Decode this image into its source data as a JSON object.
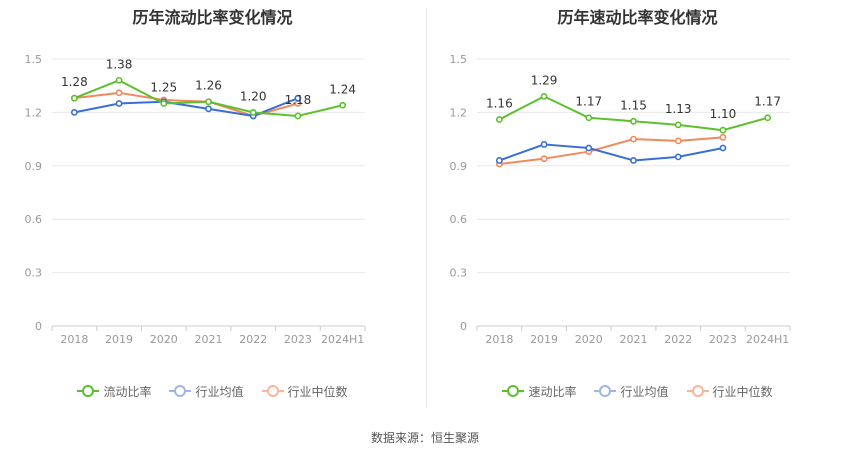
{
  "source": "数据来源：恒生聚源",
  "colors": {
    "main": "#5cc02e",
    "avg": "#3a6fd6",
    "median": "#f08a5d",
    "grid": "#e8e8e8",
    "axis": "#999999"
  },
  "chart_data": [
    {
      "type": "line",
      "title": "历年流动比率变化情况",
      "categories": [
        "2018",
        "2019",
        "2020",
        "2021",
        "2022",
        "2023",
        "2024H1"
      ],
      "ylim": [
        0,
        1.5
      ],
      "yticks": [
        "0",
        "0.3",
        "0.6",
        "0.9",
        "1.2",
        "1.5"
      ],
      "grid": true,
      "legend_position": "bottom",
      "series": [
        {
          "name": "流动比率",
          "key": "main",
          "values": [
            1.28,
            1.38,
            1.25,
            1.26,
            1.2,
            1.18,
            1.24
          ],
          "labels": [
            "1.28",
            "1.38",
            "1.25",
            "1.26",
            "1.20",
            "1.18",
            "1.24"
          ]
        },
        {
          "name": "行业均值",
          "key": "avg",
          "values": [
            1.2,
            1.25,
            1.26,
            1.22,
            1.18,
            1.28,
            null
          ]
        },
        {
          "name": "行业中位数",
          "key": "median",
          "values": [
            1.28,
            1.31,
            1.27,
            1.26,
            1.18,
            1.25,
            null
          ]
        }
      ]
    },
    {
      "type": "line",
      "title": "历年速动比率变化情况",
      "categories": [
        "2018",
        "2019",
        "2020",
        "2021",
        "2022",
        "2023",
        "2024H1"
      ],
      "ylim": [
        0,
        1.5
      ],
      "yticks": [
        "0",
        "0.3",
        "0.6",
        "0.9",
        "1.2",
        "1.5"
      ],
      "grid": true,
      "legend_position": "bottom",
      "series": [
        {
          "name": "速动比率",
          "key": "main",
          "values": [
            1.16,
            1.29,
            1.17,
            1.15,
            1.13,
            1.1,
            1.17
          ],
          "labels": [
            "1.16",
            "1.29",
            "1.17",
            "1.15",
            "1.13",
            "1.10",
            "1.17"
          ]
        },
        {
          "name": "行业均值",
          "key": "avg",
          "values": [
            0.93,
            1.02,
            1.0,
            0.93,
            0.95,
            1.0,
            null
          ]
        },
        {
          "name": "行业中位数",
          "key": "median",
          "values": [
            0.91,
            0.94,
            0.98,
            1.05,
            1.04,
            1.06,
            null
          ]
        }
      ]
    }
  ]
}
